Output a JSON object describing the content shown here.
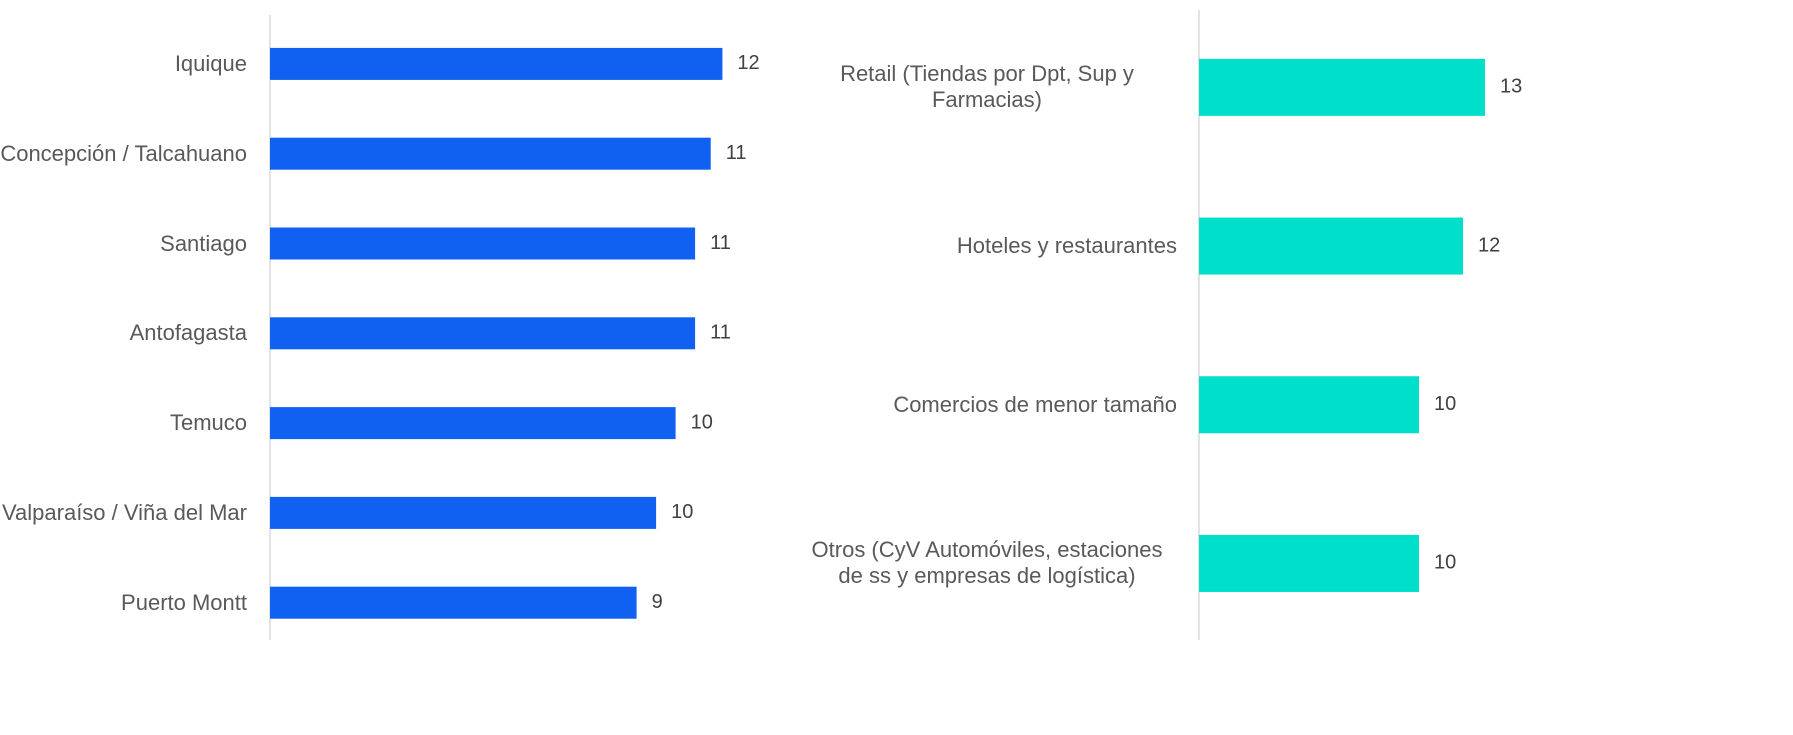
{
  "chart_data": [
    {
      "type": "bar",
      "orientation": "horizontal",
      "color": "#1060f2",
      "categories": [
        "Iquique",
        "Concepción / Talcahuano",
        "Santiago",
        "Antofagasta",
        "Temuco",
        "Valparaíso / Viña del Mar",
        "Puerto Montt"
      ],
      "values": [
        11.6,
        11.3,
        10.9,
        10.9,
        10.4,
        9.9,
        9.4
      ],
      "value_labels": [
        "12",
        "11",
        "11",
        "11",
        "10",
        "10",
        "9"
      ],
      "xlim": [
        0,
        13
      ]
    },
    {
      "type": "bar",
      "orientation": "horizontal",
      "color": "#00dfc9",
      "categories": [
        "Retail (Tiendas por Dpt, Sup y Farmacias)",
        "Hoteles y restaurantes",
        "Comercios de menor tamaño",
        "Otros (CyV Automóviles, estaciones de ss y empresas de logística)"
      ],
      "values": [
        13,
        12,
        10,
        10
      ],
      "xlim": [
        0,
        26
      ]
    }
  ]
}
